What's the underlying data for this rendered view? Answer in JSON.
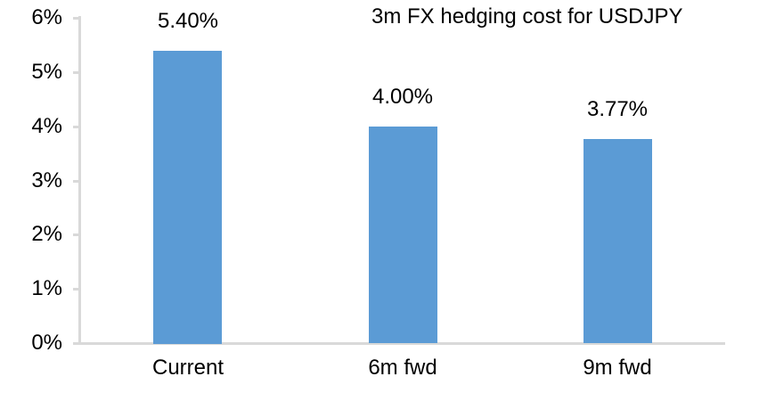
{
  "colors": {
    "bar": "#5B9BD5",
    "axis": "#D9D9D9",
    "text": "#000000",
    "background": "#FFFFFF"
  },
  "chart_data": {
    "type": "bar",
    "title": "3m FX hedging cost for USDJPY",
    "categories": [
      "Current",
      "6m fwd",
      "9m fwd"
    ],
    "values": [
      5.4,
      4.0,
      3.77
    ],
    "data_labels": [
      "5.40%",
      "4.00%",
      "3.77%"
    ],
    "xlabel": "",
    "ylabel": "",
    "ylim": [
      0,
      6
    ],
    "ytick_interval": 1,
    "ytick_labels": [
      "0%",
      "1%",
      "2%",
      "3%",
      "4%",
      "5%",
      "6%"
    ],
    "grid": false,
    "legend": "none",
    "bar_color": "#5B9BD5"
  }
}
